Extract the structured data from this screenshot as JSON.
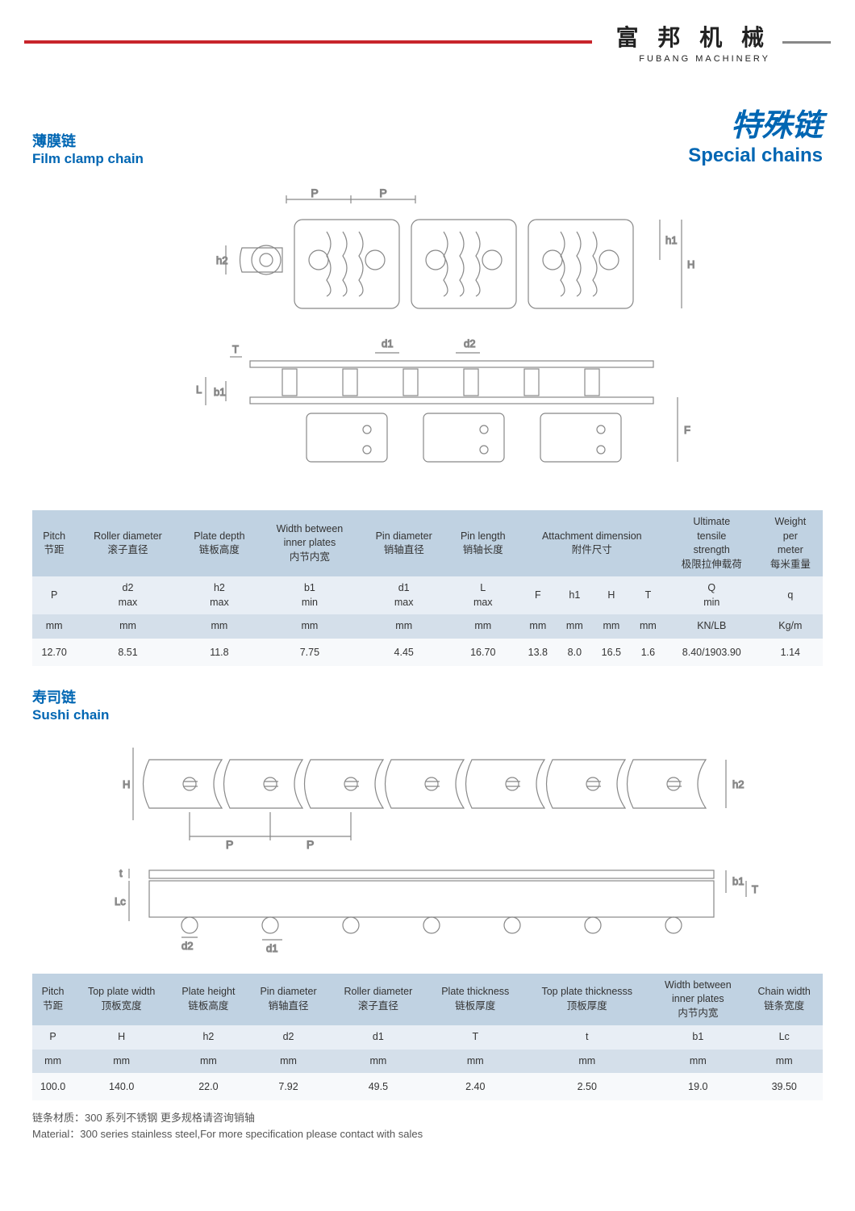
{
  "header": {
    "logo_cn": "富 邦 机 械",
    "logo_en": "FUBANG MACHINERY"
  },
  "main_title_cn": "特殊链",
  "main_title_en": "Special chains",
  "section1": {
    "title_cn": "薄膜链",
    "title_en": "Film clamp chain",
    "diagram_labels": [
      "P",
      "P",
      "h2",
      "h1",
      "H",
      "d1",
      "d2",
      "T",
      "L",
      "b1",
      "F"
    ],
    "table_colors": {
      "header_main": "#c0d2e2",
      "header_sym": "#e8eef5",
      "header_unit": "#d4dfea",
      "row": "#f7f9fb"
    },
    "headers": [
      {
        "en": "Pitch",
        "cn": "节距",
        "sym": "P",
        "unit": "mm"
      },
      {
        "en": "Roller diameter",
        "cn": "滚子直径",
        "sym": "d2\nmax",
        "unit": "mm"
      },
      {
        "en": "Plate depth",
        "cn": "链板高度",
        "sym": "h2\nmax",
        "unit": "mm"
      },
      {
        "en": "Width between\ninner plates",
        "cn": "内节内宽",
        "sym": "b1\nmin",
        "unit": "mm"
      },
      {
        "en": "Pin diameter",
        "cn": "销轴直径",
        "sym": "d1\nmax",
        "unit": "mm"
      },
      {
        "en": "Pin length",
        "cn": "销轴长度",
        "sym": "L\nmax",
        "unit": "mm"
      },
      {
        "en": "Attachment dimension",
        "cn": "附件尺寸",
        "sym": "F",
        "unit": "mm"
      },
      {
        "en": "",
        "cn": "",
        "sym": "h1",
        "unit": "mm"
      },
      {
        "en": "",
        "cn": "",
        "sym": "H",
        "unit": "mm"
      },
      {
        "en": "",
        "cn": "",
        "sym": "T",
        "unit": "mm"
      },
      {
        "en": "Ultimate\ntensile\nstrength",
        "cn": "极限拉伸载荷",
        "sym": "Q\nmin",
        "unit": "KN/LB"
      },
      {
        "en": "Weight\nper\nmeter",
        "cn": "每米重量",
        "sym": "q",
        "unit": "Kg/m"
      }
    ],
    "row": [
      "12.70",
      "8.51",
      "11.8",
      "7.75",
      "4.45",
      "16.70",
      "13.8",
      "8.0",
      "16.5",
      "1.6",
      "8.40/1903.90",
      "1.14"
    ]
  },
  "section2": {
    "title_cn": "寿司链",
    "title_en": "Sushi chain",
    "diagram_labels": [
      "H",
      "h2",
      "P",
      "P",
      "t",
      "Lc",
      "d2",
      "d1",
      "b1",
      "T"
    ],
    "headers": [
      {
        "en": "Pitch",
        "cn": "节距",
        "sym": "P",
        "unit": "mm"
      },
      {
        "en": "Top plate width",
        "cn": "顶板宽度",
        "sym": "H",
        "unit": "mm"
      },
      {
        "en": "Plate height",
        "cn": "链板高度",
        "sym": "h2",
        "unit": "mm"
      },
      {
        "en": "Pin diameter",
        "cn": "销轴直径",
        "sym": "d2",
        "unit": "mm"
      },
      {
        "en": "Roller diameter",
        "cn": "滚子直径",
        "sym": "d1",
        "unit": "mm"
      },
      {
        "en": "Plate thickness",
        "cn": "链板厚度",
        "sym": "T",
        "unit": "mm"
      },
      {
        "en": "Top plate thicknesss",
        "cn": "顶板厚度",
        "sym": "t",
        "unit": "mm"
      },
      {
        "en": "Width between\ninner plates",
        "cn": "内节内宽",
        "sym": "b1",
        "unit": "mm"
      },
      {
        "en": "Chain width",
        "cn": "链条宽度",
        "sym": "Lc",
        "unit": "mm"
      }
    ],
    "row": [
      "100.0",
      "140.0",
      "22.0",
      "7.92",
      "49.5",
      "2.40",
      "2.50",
      "19.0",
      "39.50"
    ]
  },
  "material_cn": "链条材质：300 系列不锈钢  更多规格请咨询销轴",
  "material_en": "Material：300 series stainless steel,For more specification please contact with sales"
}
